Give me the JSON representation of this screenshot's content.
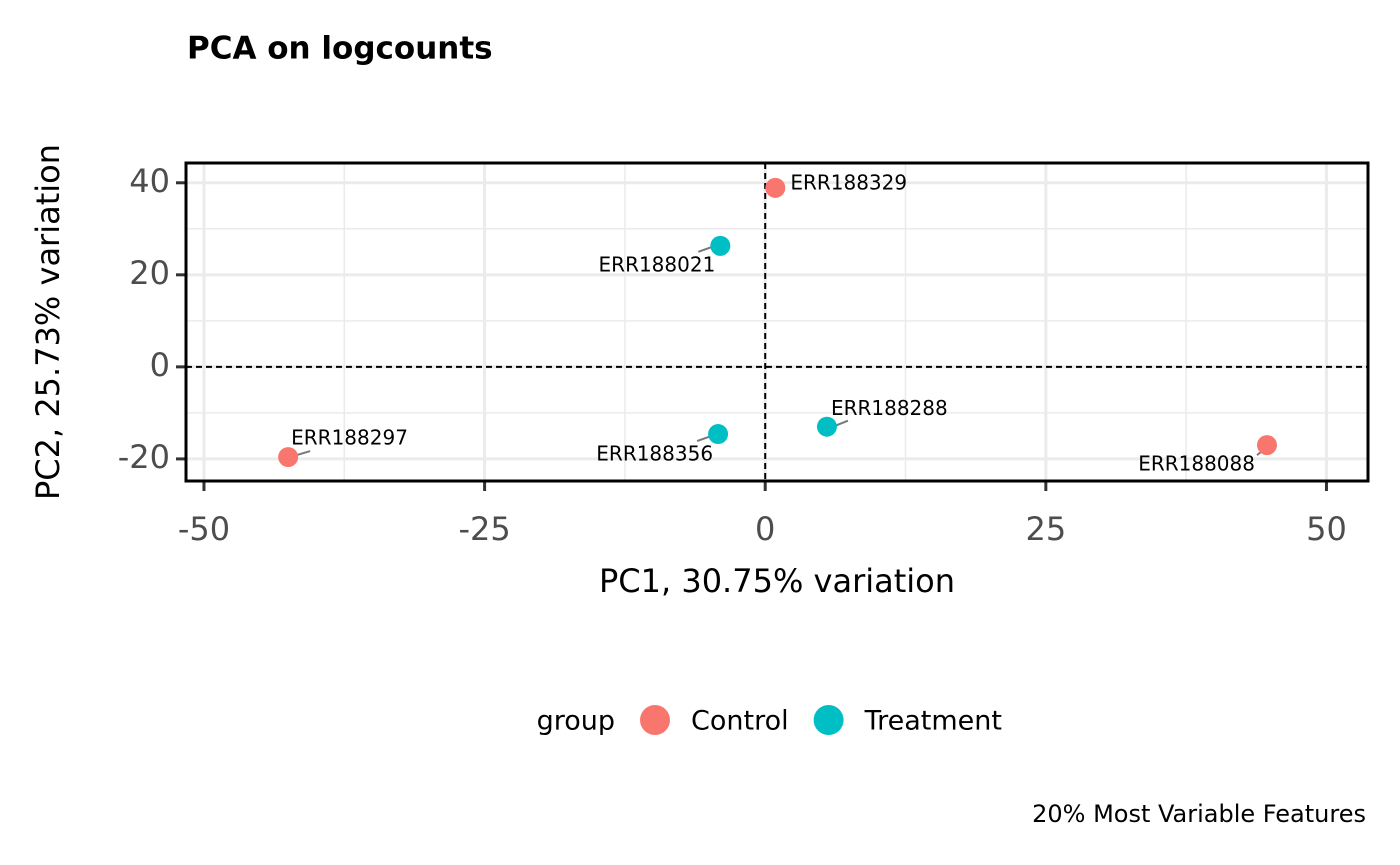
{
  "chart_data": {
    "type": "scatter",
    "title": "PCA on logcounts",
    "x_label": "PC1, 30.75% variation",
    "y_label": "PC2, 25.73% variation",
    "caption": "20% Most Variable Features",
    "legend_title": "group",
    "legend_position": "bottom",
    "xlim": [
      -51.6,
      53.7
    ],
    "ylim": [
      -24.8,
      44.3
    ],
    "xticks": [
      -50,
      -25,
      0,
      25,
      50
    ],
    "yticks": [
      -20,
      0,
      20,
      40
    ],
    "grid": true,
    "xintercept": 0,
    "yintercept": 0,
    "series": [
      {
        "name": "Control",
        "color": "#f8766d",
        "x": [
          0.9,
          -42.5,
          44.7
        ],
        "values": [
          38.9,
          -19.6,
          -17.0
        ],
        "labels": [
          "ERR188329",
          "ERR188297",
          "ERR188088"
        ]
      },
      {
        "name": "Treatment",
        "color": "#00bfc4",
        "x": [
          -4.0,
          -4.2,
          5.5
        ],
        "values": [
          26.3,
          -14.6,
          -13.0
        ],
        "labels": [
          "ERR188021",
          "ERR188356",
          "ERR188288"
        ]
      }
    ]
  }
}
